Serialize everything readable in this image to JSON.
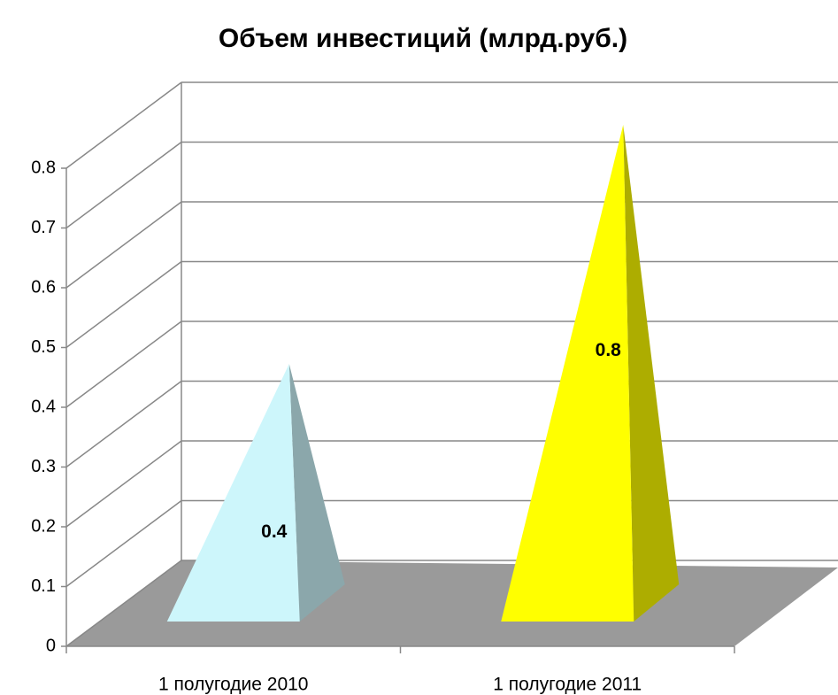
{
  "chart_data": {
    "type": "pyramid3d",
    "title": "Объем инвестиций (млрд.руб.)",
    "categories": [
      "1 полугодие 2010",
      "1 полугодие 2011"
    ],
    "values": [
      0.4,
      0.8
    ],
    "colors": [
      "#cdf6fb",
      "#ffff00"
    ],
    "ylim": [
      0,
      0.8
    ],
    "yticks": [
      0,
      0.1,
      0.2,
      0.3,
      0.4,
      0.5,
      0.6,
      0.7,
      0.8
    ],
    "grid": true
  }
}
